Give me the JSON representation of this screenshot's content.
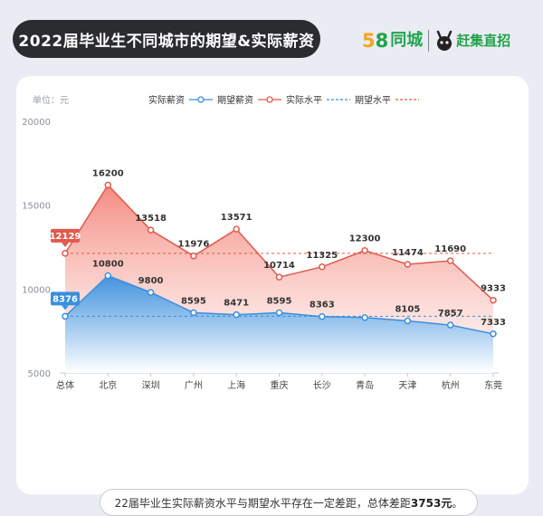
{
  "page_title": "2022届毕业生不同城市的期望&实际薪资",
  "brand": {
    "five": "5",
    "eight": "8",
    "tongcheng": "同城",
    "ganji": "赶集直招"
  },
  "chart_data": {
    "type": "line",
    "unit_label": "单位：元",
    "categories": [
      "总体",
      "北京",
      "深圳",
      "广州",
      "上海",
      "重庆",
      "长沙",
      "青岛",
      "天津",
      "杭州",
      "东莞"
    ],
    "series": [
      {
        "name": "实际薪资",
        "values": [
          8376,
          10800,
          9800,
          8595,
          8471,
          8595,
          8363,
          8300,
          8105,
          7857,
          7333
        ],
        "labels": [
          "",
          "10800",
          "9800",
          "8595",
          "8471",
          "8595",
          "8363",
          "",
          "8105",
          "7857",
          "7333"
        ],
        "color": "#3a8fde"
      },
      {
        "name": "期望薪资",
        "values": [
          12129,
          16200,
          13518,
          11976,
          13571,
          10714,
          11325,
          12300,
          11474,
          11690,
          9333
        ],
        "labels": [
          "",
          "16200",
          "13518",
          "11976",
          "13571",
          "10714",
          "11325",
          "12300",
          "11474",
          "11690",
          "9333"
        ],
        "color": "#e05a4c"
      }
    ],
    "reference_lines": [
      {
        "name": "实际水平",
        "value": 8376,
        "label": "8376",
        "color": "#3a8fde"
      },
      {
        "name": "期望水平",
        "value": 12129,
        "label": "12129",
        "color": "#e05a4c"
      }
    ],
    "y_ticks": [
      "5000",
      "10000",
      "15000",
      "20000"
    ],
    "ylim": [
      5000,
      20000
    ],
    "grid": false,
    "legend_position": "top"
  },
  "footnote": {
    "pre": "22届毕业生实际薪资水平与期望水平存在一定差距，总体差距",
    "value": "3753元",
    "post": "。"
  }
}
